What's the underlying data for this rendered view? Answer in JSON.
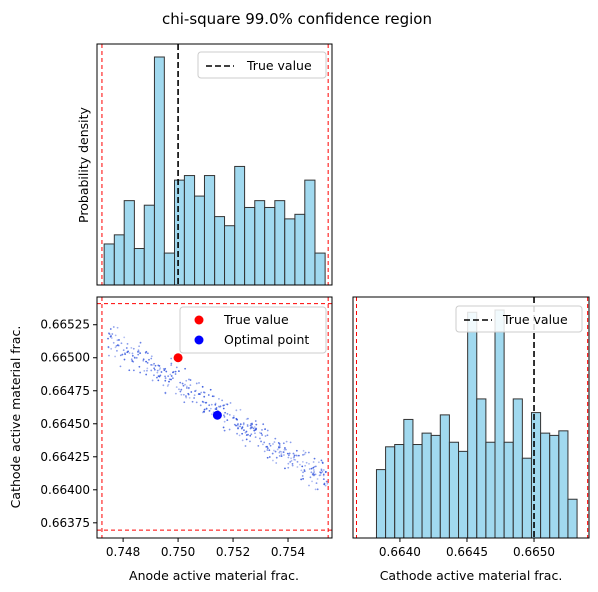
{
  "figure": {
    "title": "chi-square 99.0% confidence region"
  },
  "chart_data": [
    {
      "id": "anode-hist",
      "type": "bar",
      "title": "",
      "xlabel": "",
      "ylabel": "Probability density",
      "xlim": [
        0.74705,
        0.7556
      ],
      "ylim": [
        0,
        1.0
      ],
      "yticks_shown": false,
      "bin_edges": [
        0.74731,
        0.74768,
        0.74804,
        0.74841,
        0.74877,
        0.74914,
        0.7495,
        0.74987,
        0.75023,
        0.7506,
        0.75096,
        0.75133,
        0.75169,
        0.75206,
        0.75242,
        0.75279,
        0.75315,
        0.75352,
        0.75388,
        0.75425,
        0.75461,
        0.75498,
        0.75535
      ],
      "values": [
        0.18,
        0.22,
        0.37,
        0.16,
        0.35,
        1.0,
        0.14,
        0.46,
        0.48,
        0.39,
        0.48,
        0.3,
        0.26,
        0.52,
        0.34,
        0.37,
        0.34,
        0.37,
        0.29,
        0.31,
        0.46,
        0.14
      ],
      "bar_color": "#87ceeb",
      "edge_color": "#333333",
      "true_value": 0.75,
      "bounds": [
        0.74723,
        0.75546
      ],
      "legend": {
        "entries": [
          "True value"
        ],
        "placement": "upper right"
      }
    },
    {
      "id": "scatter",
      "type": "scatter",
      "xlabel": "Anode active material frac.",
      "ylabel": "Cathode active material frac.",
      "xlim": [
        0.74705,
        0.7556
      ],
      "ylim": [
        0.663635,
        0.66546
      ],
      "xticks": [
        "0.748",
        "0.750",
        "0.752",
        "0.754"
      ],
      "xtick_values": [
        0.748,
        0.75,
        0.752,
        0.754
      ],
      "yticks": [
        "0.66375",
        "0.66400",
        "0.66425",
        "0.66450",
        "0.66475",
        "0.66500",
        "0.66525"
      ],
      "ytick_values": [
        0.66375,
        0.664,
        0.66425,
        0.6645,
        0.66475,
        0.665,
        0.66525
      ],
      "point_color": "#3355dd",
      "samples": {
        "count": 420,
        "center": [
          0.7513,
          0.66463
        ],
        "slope": -0.1333,
        "along_range": [
          -0.00385,
          0.00415
        ],
        "perp_sd": 6e-05
      },
      "true_point": {
        "x": 0.75,
        "y": 0.665,
        "color": "#ff0000"
      },
      "optimal_point": {
        "x": 0.75143,
        "y": 0.664565,
        "color": "#0000ff"
      },
      "bounds": {
        "x": [
          0.74723,
          0.75546
        ],
        "y": [
          0.663695,
          0.66541
        ]
      },
      "legend": {
        "entries": [
          "True value",
          "Optimal point"
        ],
        "placement": "upper right"
      }
    },
    {
      "id": "cathode-hist",
      "type": "bar",
      "xlabel": "Cathode active material frac.",
      "ylabel": "",
      "xlim": [
        0.66365,
        0.66541
      ],
      "ylim": [
        0,
        1.0
      ],
      "xticks": [
        "0.6640",
        "0.6645",
        "0.6650"
      ],
      "xtick_values": [
        0.664,
        0.6645,
        0.665
      ],
      "bin_edges": [
        0.663825,
        0.663893,
        0.663961,
        0.664029,
        0.664097,
        0.664165,
        0.664233,
        0.664301,
        0.664369,
        0.664437,
        0.664505,
        0.664573,
        0.664641,
        0.664709,
        0.664777,
        0.664845,
        0.664913,
        0.664981,
        0.665049,
        0.665117,
        0.665185,
        0.665253,
        0.665321
      ],
      "values": [
        0.3,
        0.4,
        0.41,
        0.52,
        0.41,
        0.46,
        0.45,
        0.54,
        0.42,
        0.38,
        0.99,
        0.61,
        0.42,
        1.0,
        0.42,
        0.61,
        0.35,
        0.55,
        0.46,
        0.45,
        0.47,
        0.17
      ],
      "bar_color": "#87ceeb",
      "edge_color": "#333333",
      "true_value": 0.665,
      "bounds": [
        0.663676,
        0.6654
      ],
      "legend": {
        "entries": [
          "True value"
        ],
        "placement": "upper right"
      }
    }
  ]
}
